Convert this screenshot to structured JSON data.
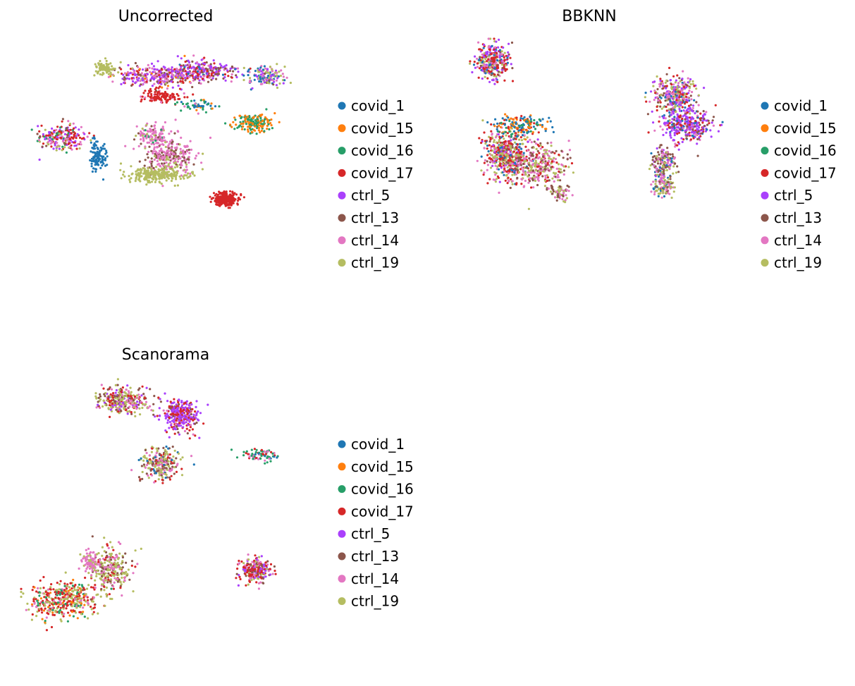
{
  "figure": {
    "palette": {
      "covid_1": "#1f77b4",
      "covid_15": "#ff7f0e",
      "covid_16": "#279e68",
      "covid_17": "#d62728",
      "ctrl_5": "#aa40fc",
      "ctrl_13": "#8c564b",
      "ctrl_14": "#e377c2",
      "ctrl_19": "#b5bd61"
    }
  },
  "chart_data": [
    {
      "type": "scatter",
      "title": "Uncorrected",
      "xlabel": "",
      "ylabel": "",
      "grid": false,
      "axes_visible": false,
      "legend_position": "right",
      "legend": [
        "covid_1",
        "covid_15",
        "covid_16",
        "covid_17",
        "ctrl_5",
        "ctrl_13",
        "ctrl_14",
        "ctrl_19"
      ],
      "clusters": [
        {
          "center": [
            47,
            13
          ],
          "spread": [
            13,
            3.5
          ],
          "n": 300,
          "mix": {
            "ctrl_5": 3,
            "ctrl_13": 3,
            "ctrl_14": 3,
            "covid_17": 1.5,
            "covid_15": 0.5,
            "ctrl_19": 0.5
          }
        },
        {
          "center": [
            62,
            11
          ],
          "spread": [
            12,
            3
          ],
          "n": 250,
          "mix": {
            "ctrl_5": 4,
            "ctrl_14": 2,
            "ctrl_13": 2,
            "covid_17": 2,
            "covid_1": 0.5
          }
        },
        {
          "center": [
            85,
            13
          ],
          "spread": [
            6,
            3
          ],
          "n": 150,
          "mix": {
            "ctrl_19": 3,
            "covid_1": 2,
            "ctrl_5": 2,
            "ctrl_14": 2,
            "ctrl_13": 1
          }
        },
        {
          "center": [
            29,
            10.5
          ],
          "spread": [
            3.5,
            2
          ],
          "n": 90,
          "mix": {
            "ctrl_19": 10
          }
        },
        {
          "center": [
            48,
            20
          ],
          "spread": [
            7,
            2
          ],
          "n": 110,
          "mix": {
            "covid_17": 9,
            "ctrl_14": 1
          }
        },
        {
          "center": [
            14,
            34
          ],
          "spread": [
            7,
            4
          ],
          "n": 210,
          "mix": {
            "covid_17": 4,
            "ctrl_5": 3,
            "ctrl_14": 2,
            "ctrl_13": 1,
            "covid_16": 1,
            "ctrl_19": 1
          }
        },
        {
          "center": [
            26.5,
            40.5
          ],
          "spread": [
            2.5,
            4.5
          ],
          "n": 110,
          "mix": {
            "covid_1": 10
          }
        },
        {
          "center": [
            51.5,
            40.5
          ],
          "spread": [
            8,
            5
          ],
          "n": 270,
          "mix": {
            "ctrl_14": 6,
            "ctrl_13": 3,
            "ctrl_19": 1
          }
        },
        {
          "center": [
            47,
            47
          ],
          "spread": [
            10,
            2.5
          ],
          "n": 240,
          "mix": {
            "ctrl_19": 10
          }
        },
        {
          "center": [
            80,
            29
          ],
          "spread": [
            6,
            3
          ],
          "n": 160,
          "mix": {
            "covid_15": 5,
            "covid_16": 5
          }
        },
        {
          "center": [
            45,
            33
          ],
          "spread": [
            6,
            3
          ],
          "n": 110,
          "mix": {
            "ctrl_14": 7,
            "covid_16": 1,
            "ctrl_19": 1,
            "ctrl_13": 1
          }
        },
        {
          "center": [
            61,
            23
          ],
          "spread": [
            5,
            2
          ],
          "n": 50,
          "mix": {
            "covid_1": 3,
            "covid_16": 4,
            "covid_15": 2,
            "ctrl_14": 1
          }
        },
        {
          "center": [
            71,
            55.5
          ],
          "spread": [
            4,
            2.2
          ],
          "n": 230,
          "mix": {
            "covid_17": 10
          }
        }
      ]
    },
    {
      "type": "scatter",
      "title": "BBKNN",
      "xlabel": "",
      "ylabel": "",
      "grid": false,
      "axes_visible": false,
      "legend_position": "right",
      "legend": [
        "covid_1",
        "covid_15",
        "covid_16",
        "covid_17",
        "ctrl_5",
        "ctrl_13",
        "ctrl_14",
        "ctrl_19"
      ],
      "clusters": [
        {
          "center": [
            17,
            8
          ],
          "spread": [
            5,
            6
          ],
          "n": 310,
          "mix": {
            "covid_17": 3,
            "ctrl_5": 3,
            "ctrl_14": 2,
            "ctrl_13": 1,
            "ctrl_19": 2,
            "covid_1": 1
          }
        },
        {
          "center": [
            80,
            20
          ],
          "spread": [
            7,
            6
          ],
          "n": 330,
          "mix": {
            "ctrl_19": 3,
            "covid_17": 2,
            "ctrl_14": 2,
            "ctrl_13": 2,
            "ctrl_5": 2,
            "covid_1": 1
          }
        },
        {
          "center": [
            84,
            30
          ],
          "spread": [
            8,
            5
          ],
          "n": 320,
          "mix": {
            "ctrl_5": 5,
            "covid_17": 2,
            "ctrl_13": 1,
            "ctrl_14": 1,
            "covid_1": 1
          }
        },
        {
          "center": [
            76,
            43
          ],
          "spread": [
            4,
            5
          ],
          "n": 170,
          "mix": {
            "ctrl_13": 3,
            "ctrl_19": 2,
            "ctrl_14": 2,
            "ctrl_5": 1,
            "covid_1": 1
          }
        },
        {
          "center": [
            76,
            51
          ],
          "spread": [
            3.5,
            3
          ],
          "n": 110,
          "mix": {
            "ctrl_14": 3,
            "ctrl_19": 3,
            "ctrl_13": 2,
            "covid_1": 1
          }
        },
        {
          "center": [
            22,
            40
          ],
          "spread": [
            7,
            8
          ],
          "n": 520,
          "mix": {
            "covid_17": 4,
            "ctrl_19": 3,
            "ctrl_14": 2,
            "ctrl_13": 1,
            "ctrl_5": 1,
            "covid_1": 1
          }
        },
        {
          "center": [
            33,
            44
          ],
          "spread": [
            8,
            7
          ],
          "n": 300,
          "mix": {
            "ctrl_14": 3,
            "ctrl_19": 2,
            "ctrl_13": 2,
            "covid_17": 1
          }
        },
        {
          "center": [
            27,
            30
          ],
          "spread": [
            8,
            3
          ],
          "n": 150,
          "mix": {
            "covid_16": 3,
            "covid_15": 3,
            "covid_1": 3,
            "covid_17": 1
          }
        },
        {
          "center": [
            40,
            53
          ],
          "spread": [
            3,
            2.5
          ],
          "n": 60,
          "mix": {
            "ctrl_13": 4,
            "ctrl_19": 3,
            "ctrl_14": 3
          }
        }
      ]
    },
    {
      "type": "scatter",
      "title": "Scanorama",
      "xlabel": "",
      "ylabel": "",
      "grid": false,
      "axes_visible": false,
      "legend_position": "right",
      "legend": [
        "covid_1",
        "covid_15",
        "covid_16",
        "covid_17",
        "ctrl_5",
        "ctrl_13",
        "ctrl_14",
        "ctrl_19"
      ],
      "clusters": [
        {
          "center": [
            35,
            8
          ],
          "spread": [
            8,
            4
          ],
          "n": 320,
          "mix": {
            "ctrl_19": 3,
            "ctrl_13": 2,
            "ctrl_14": 2,
            "covid_17": 2,
            "ctrl_5": 1
          }
        },
        {
          "center": [
            55,
            13
          ],
          "spread": [
            6,
            5
          ],
          "n": 320,
          "mix": {
            "ctrl_5": 5,
            "covid_17": 3,
            "ctrl_14": 1,
            "ctrl_13": 1
          }
        },
        {
          "center": [
            48,
            30
          ],
          "spread": [
            6,
            5
          ],
          "n": 230,
          "mix": {
            "ctrl_19": 3,
            "ctrl_14": 2,
            "ctrl_13": 2,
            "covid_1": 1,
            "covid_17": 1
          }
        },
        {
          "center": [
            83,
            27
          ],
          "spread": [
            6,
            2
          ],
          "n": 70,
          "mix": {
            "covid_16": 4,
            "covid_17": 2,
            "ctrl_14": 3,
            "covid_1": 1
          }
        },
        {
          "center": [
            15,
            77
          ],
          "spread": [
            11,
            6
          ],
          "n": 420,
          "mix": {
            "covid_17": 4,
            "ctrl_19": 3,
            "covid_15": 1,
            "covid_16": 1,
            "ctrl_14": 1
          }
        },
        {
          "center": [
            31,
            66
          ],
          "spread": [
            6,
            7
          ],
          "n": 250,
          "mix": {
            "ctrl_19": 4,
            "ctrl_14": 2,
            "ctrl_13": 2,
            "covid_17": 1
          }
        },
        {
          "center": [
            24,
            64
          ],
          "spread": [
            3,
            3
          ],
          "n": 80,
          "mix": {
            "ctrl_14": 8,
            "ctrl_19": 2
          }
        },
        {
          "center": [
            81,
            67
          ],
          "spread": [
            5,
            4
          ],
          "n": 230,
          "mix": {
            "covid_17": 4,
            "ctrl_5": 2,
            "ctrl_14": 2,
            "ctrl_19": 1,
            "ctrl_13": 1
          }
        }
      ]
    }
  ]
}
